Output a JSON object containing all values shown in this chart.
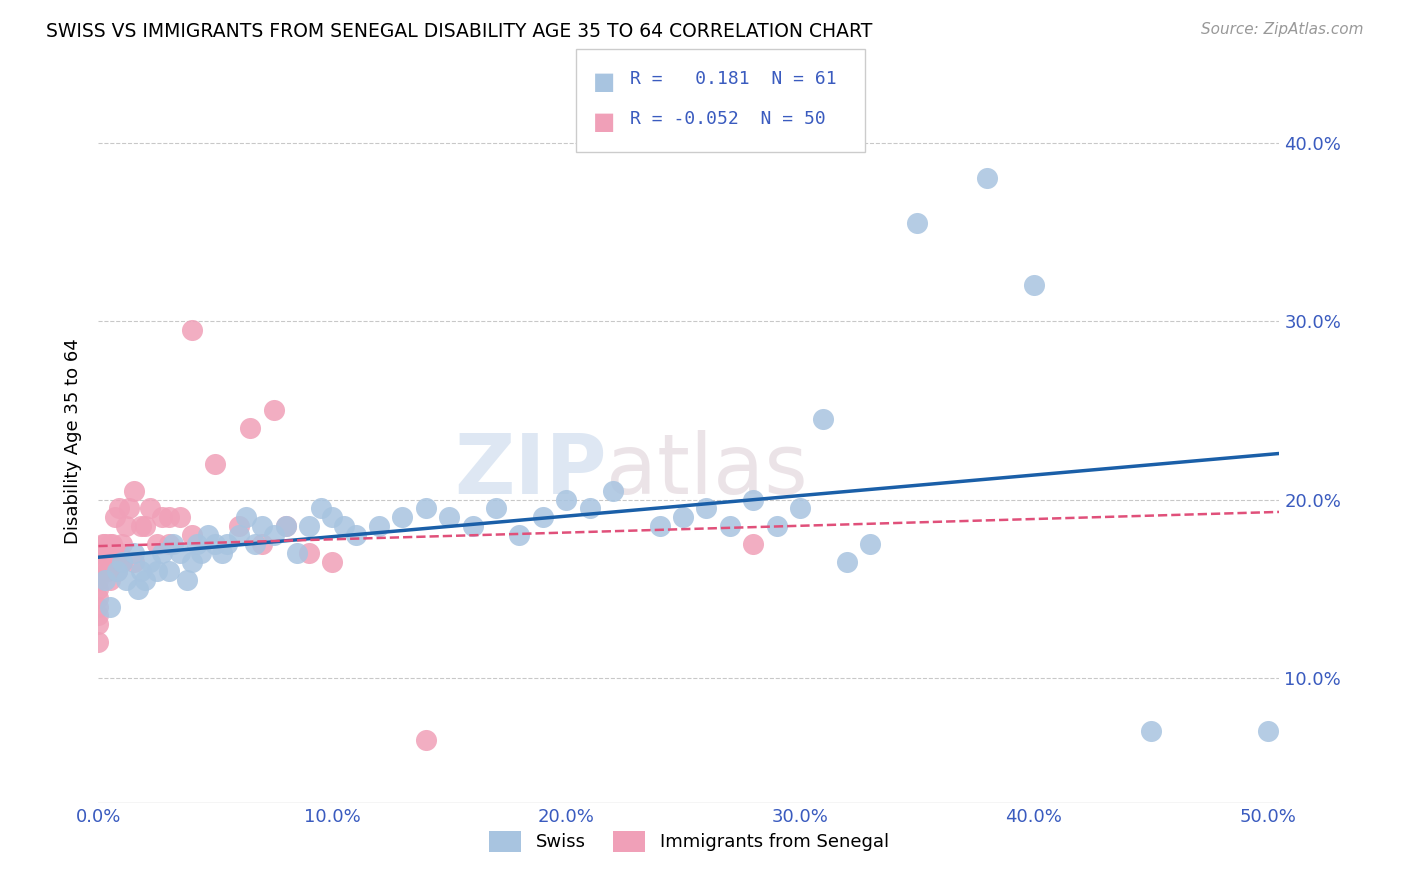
{
  "title": "SWISS VS IMMIGRANTS FROM SENEGAL DISABILITY AGE 35 TO 64 CORRELATION CHART",
  "source": "Source: ZipAtlas.com",
  "ylabel": "Disability Age 35 to 64",
  "xlim": [
    0.0,
    0.505
  ],
  "ylim": [
    0.03,
    0.435
  ],
  "xticks": [
    0.0,
    0.1,
    0.2,
    0.3,
    0.4,
    0.5
  ],
  "yticks": [
    0.1,
    0.2,
    0.3,
    0.4
  ],
  "ytick_labels": [
    "10.0%",
    "20.0%",
    "30.0%",
    "40.0%"
  ],
  "xtick_labels": [
    "0.0%",
    "10.0%",
    "20.0%",
    "30.0%",
    "40.0%",
    "50.0%"
  ],
  "swiss_color": "#a8c4e0",
  "senegal_color": "#f0a0b8",
  "swiss_line_color": "#1a5fa8",
  "senegal_line_color": "#e0507a",
  "swiss_R": 0.181,
  "swiss_N": 61,
  "senegal_R": -0.052,
  "senegal_N": 50,
  "watermark_zip": "ZIP",
  "watermark_atlas": "atlas",
  "swiss_x": [
    0.003,
    0.005,
    0.008,
    0.01,
    0.012,
    0.015,
    0.017,
    0.018,
    0.02,
    0.022,
    0.025,
    0.027,
    0.03,
    0.032,
    0.035,
    0.038,
    0.04,
    0.042,
    0.044,
    0.047,
    0.05,
    0.053,
    0.055,
    0.06,
    0.063,
    0.067,
    0.07,
    0.075,
    0.08,
    0.085,
    0.09,
    0.095,
    0.1,
    0.105,
    0.11,
    0.12,
    0.13,
    0.14,
    0.15,
    0.16,
    0.17,
    0.18,
    0.19,
    0.2,
    0.21,
    0.22,
    0.24,
    0.25,
    0.26,
    0.27,
    0.28,
    0.29,
    0.3,
    0.31,
    0.32,
    0.33,
    0.35,
    0.38,
    0.4,
    0.45,
    0.5
  ],
  "swiss_y": [
    0.155,
    0.14,
    0.16,
    0.165,
    0.155,
    0.17,
    0.15,
    0.16,
    0.155,
    0.165,
    0.16,
    0.17,
    0.16,
    0.175,
    0.17,
    0.155,
    0.165,
    0.175,
    0.17,
    0.18,
    0.175,
    0.17,
    0.175,
    0.18,
    0.19,
    0.175,
    0.185,
    0.18,
    0.185,
    0.17,
    0.185,
    0.195,
    0.19,
    0.185,
    0.18,
    0.185,
    0.19,
    0.195,
    0.19,
    0.185,
    0.195,
    0.18,
    0.19,
    0.2,
    0.195,
    0.205,
    0.185,
    0.19,
    0.195,
    0.185,
    0.2,
    0.185,
    0.195,
    0.245,
    0.165,
    0.175,
    0.355,
    0.38,
    0.32,
    0.07,
    0.07
  ],
  "senegal_x": [
    0.0,
    0.0,
    0.0,
    0.0,
    0.0,
    0.0,
    0.0,
    0.0,
    0.0,
    0.0,
    0.002,
    0.003,
    0.003,
    0.004,
    0.005,
    0.005,
    0.005,
    0.006,
    0.006,
    0.007,
    0.007,
    0.008,
    0.009,
    0.009,
    0.01,
    0.01,
    0.012,
    0.013,
    0.015,
    0.015,
    0.018,
    0.02,
    0.022,
    0.025,
    0.027,
    0.03,
    0.03,
    0.035,
    0.04,
    0.04,
    0.05,
    0.06,
    0.065,
    0.07,
    0.075,
    0.08,
    0.09,
    0.1,
    0.14,
    0.28
  ],
  "senegal_y": [
    0.12,
    0.13,
    0.135,
    0.14,
    0.145,
    0.15,
    0.155,
    0.16,
    0.165,
    0.17,
    0.175,
    0.17,
    0.175,
    0.16,
    0.155,
    0.165,
    0.175,
    0.165,
    0.175,
    0.17,
    0.19,
    0.16,
    0.17,
    0.195,
    0.165,
    0.175,
    0.185,
    0.195,
    0.165,
    0.205,
    0.185,
    0.185,
    0.195,
    0.175,
    0.19,
    0.19,
    0.175,
    0.19,
    0.18,
    0.295,
    0.22,
    0.185,
    0.24,
    0.175,
    0.25,
    0.185,
    0.17,
    0.165,
    0.065,
    0.175
  ]
}
